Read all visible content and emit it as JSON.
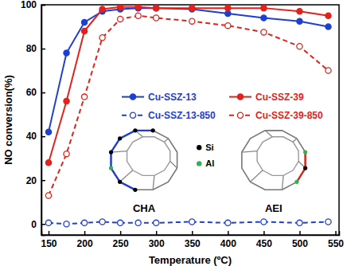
{
  "chart_data": {
    "type": "line",
    "xlabel": "Temperature (ºC)",
    "ylabel": "NO conversion(%)",
    "x": [
      150,
      175,
      200,
      225,
      250,
      275,
      300,
      350,
      400,
      450,
      500,
      540
    ],
    "xlim": [
      140,
      555
    ],
    "xticks": [
      150,
      200,
      250,
      300,
      350,
      400,
      450,
      500,
      550
    ],
    "ylim": [
      -5,
      100
    ],
    "yticks": [
      0,
      20,
      40,
      60,
      80,
      100
    ],
    "legend": "center",
    "series": [
      {
        "name": "Cu-SSZ-13",
        "color": "#1f3fd0",
        "marker": "circle",
        "line_style": "solid",
        "values": [
          42,
          78,
          92,
          97,
          98,
          98.5,
          98.5,
          98,
          96,
          94,
          92.5,
          90
        ]
      },
      {
        "name": "Cu-SSZ-39",
        "color": "#e3221b",
        "marker": "circle",
        "line_style": "solid",
        "values": [
          28,
          56,
          88,
          98,
          99,
          99,
          98.5,
          98.5,
          98.5,
          98.5,
          97,
          95
        ]
      },
      {
        "name": "Cu-SSZ-13-850",
        "color": "#1f3fd0",
        "marker": "open_circle",
        "line_style": "dashed",
        "values": [
          0.5,
          0,
          0.5,
          1,
          0.5,
          0.5,
          0.5,
          1,
          0.5,
          1,
          0.5,
          1
        ]
      },
      {
        "name": "Cu-SSZ-39-850",
        "color": "#e3221b",
        "marker": "open_circle",
        "line_style": "dashed",
        "values": [
          13,
          32,
          58,
          85,
          93.5,
          95,
          94,
          92.5,
          90.5,
          87.5,
          81,
          70
        ]
      }
    ],
    "annotations": [
      {
        "text": "CHA"
      },
      {
        "text": "AEI"
      },
      {
        "text": "Si",
        "color": "#000000"
      },
      {
        "text": "Al",
        "color": "#2fb34a"
      }
    ]
  }
}
